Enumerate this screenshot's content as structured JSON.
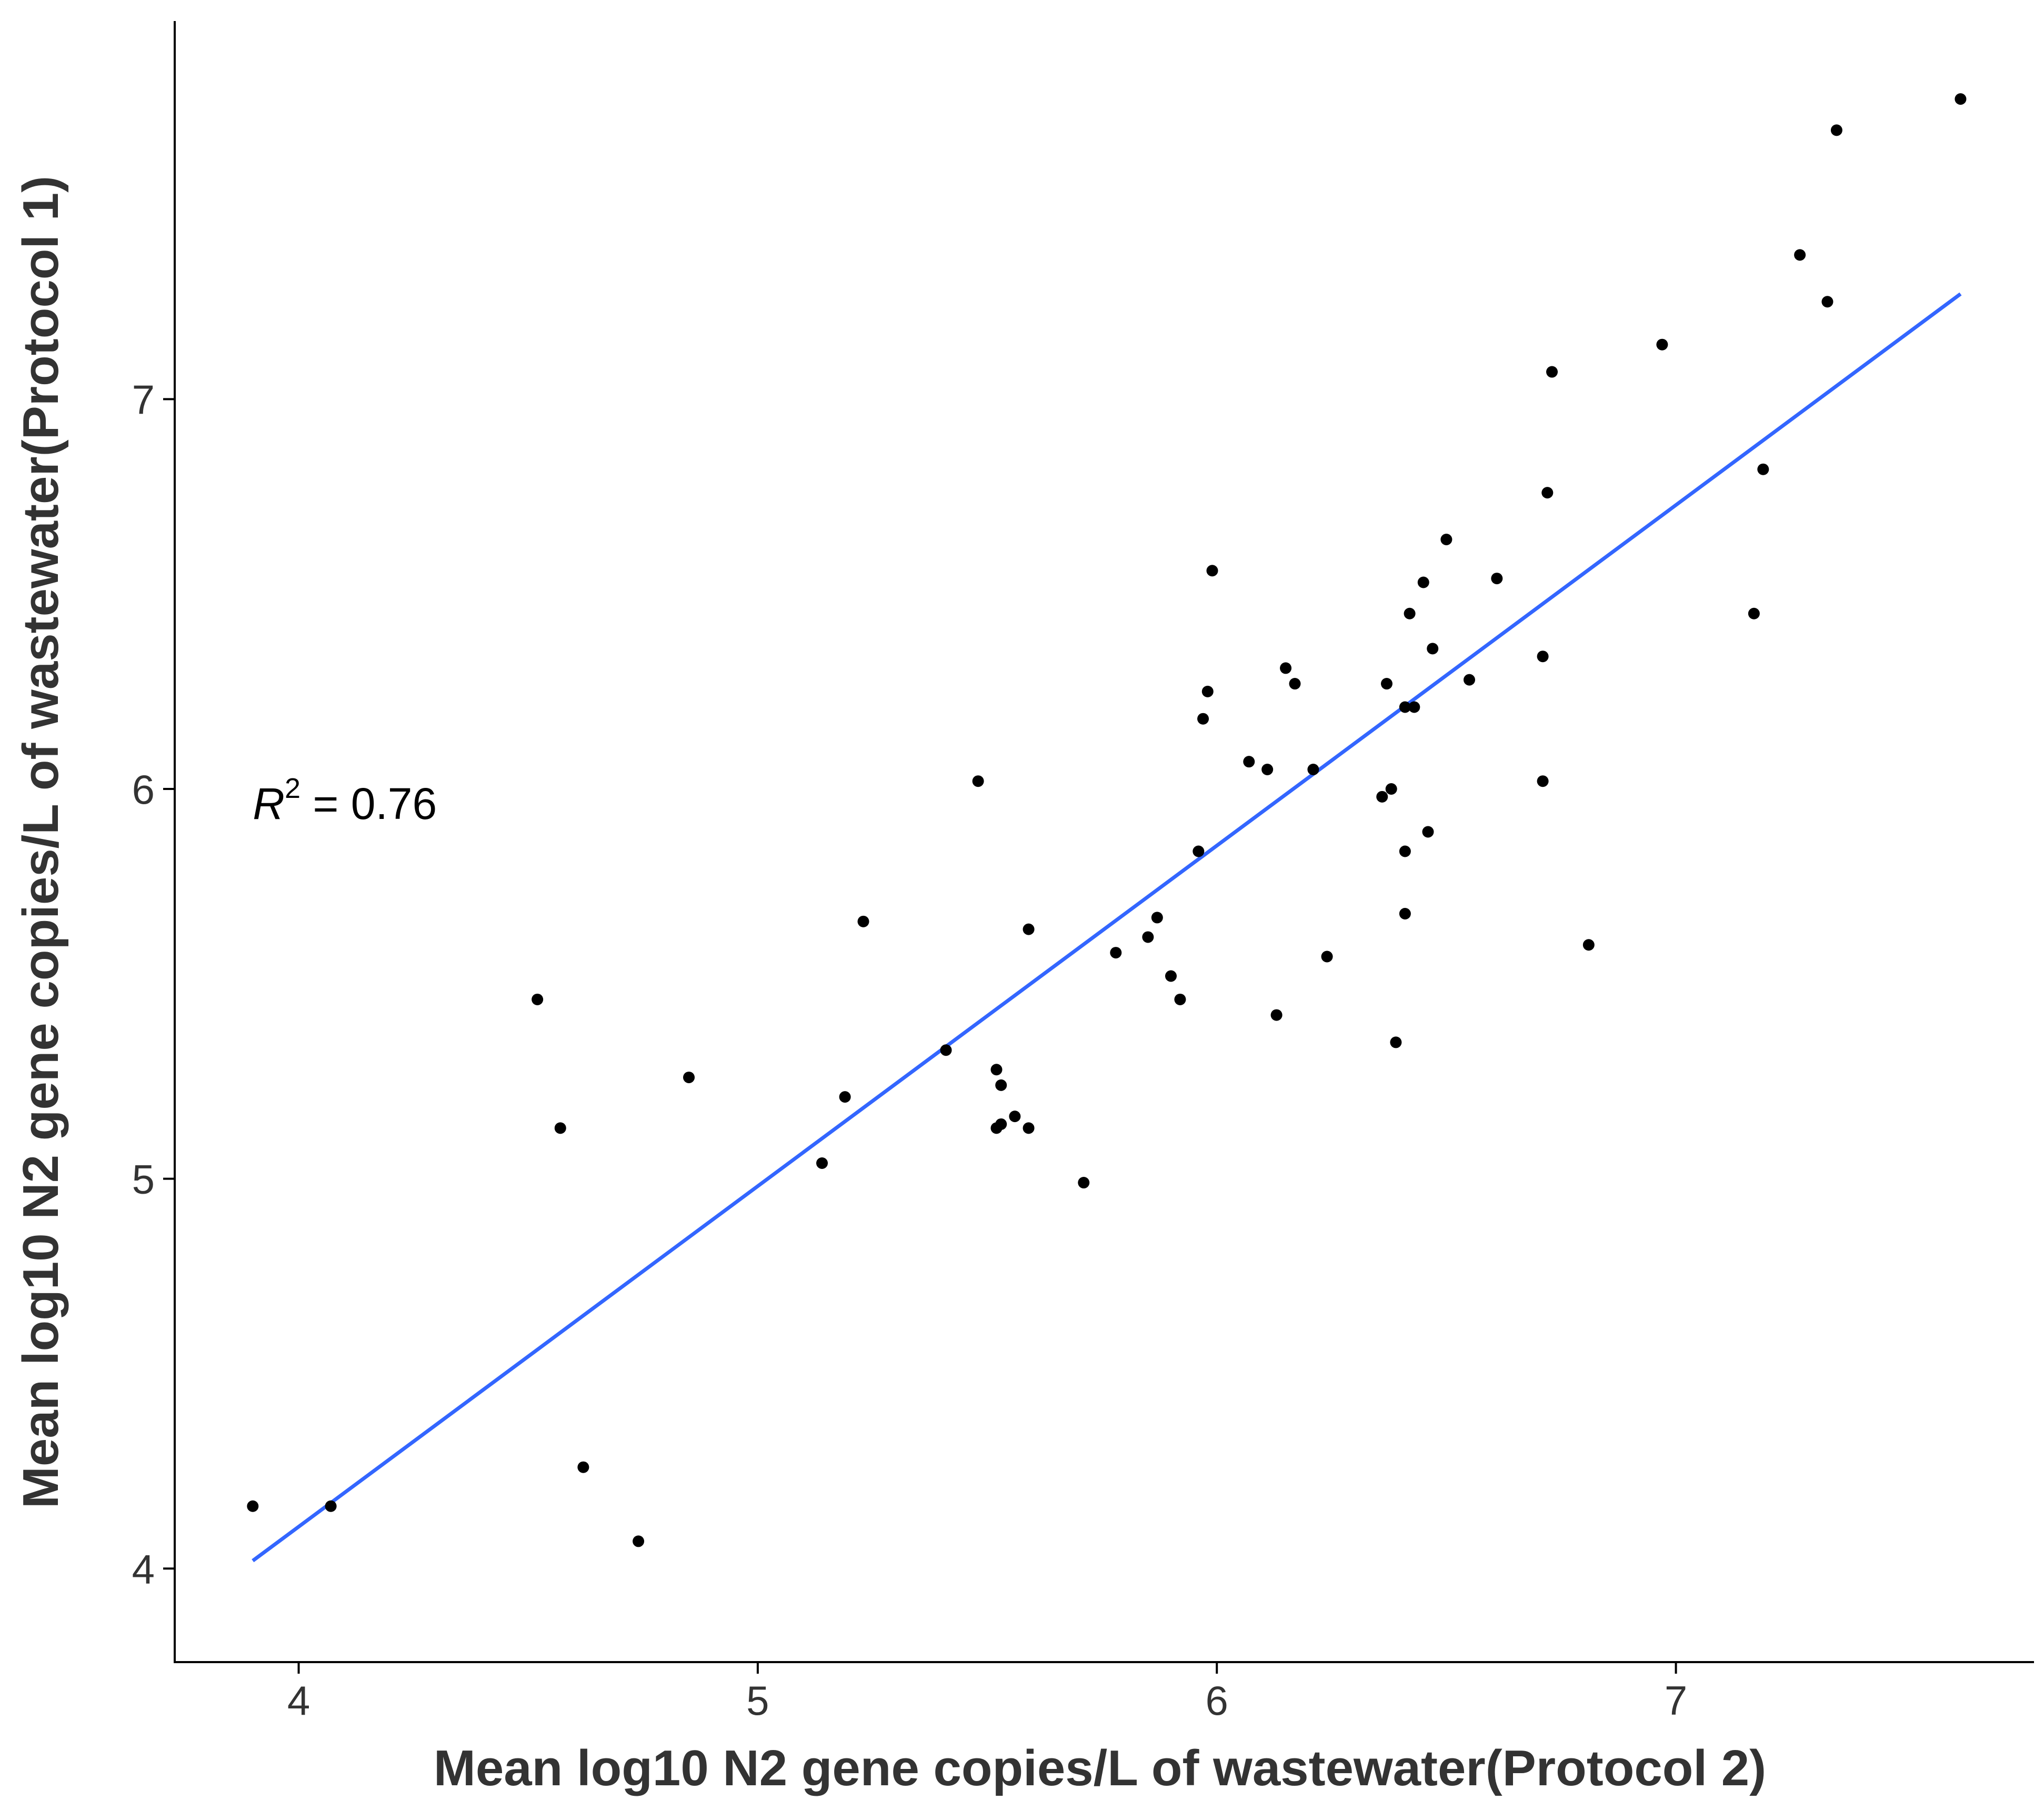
{
  "chart_data": {
    "type": "scatter",
    "xlabel": "Mean log10 N2 gene copies/L of wastewater(Protocol 2)",
    "ylabel": "Mean log10 N2 gene copies/L of wastewater(Protocol 1)",
    "xlim": [
      3.73,
      7.78
    ],
    "ylim": [
      3.76,
      7.97
    ],
    "x_ticks": [
      4,
      5,
      6,
      7
    ],
    "y_ticks": [
      4,
      5,
      6,
      7
    ],
    "x_tick_labels": [
      "4",
      "5",
      "6",
      "7"
    ],
    "y_tick_labels": [
      "4",
      "5",
      "6",
      "7"
    ],
    "grid": false,
    "annotation": {
      "r_symbol": "R",
      "superscript": "2",
      "value_text": " = 0.76",
      "x": 3.9,
      "y": 5.95
    },
    "fit_line": {
      "x": [
        3.9,
        7.62
      ],
      "y": [
        4.02,
        7.27
      ],
      "color": "#3366ff"
    },
    "point_color": "#000000",
    "points": {
      "x": [
        3.9,
        4.07,
        4.52,
        4.57,
        4.62,
        4.74,
        4.85,
        5.14,
        5.19,
        5.23,
        5.41,
        5.48,
        5.52,
        5.52,
        5.53,
        5.53,
        5.56,
        5.59,
        5.59,
        5.71,
        5.78,
        5.85,
        5.87,
        5.9,
        5.92,
        5.96,
        5.97,
        5.98,
        5.99,
        6.07,
        6.11,
        6.13,
        6.15,
        6.17,
        6.21,
        6.24,
        6.36,
        6.37,
        6.38,
        6.39,
        6.41,
        6.41,
        6.41,
        6.42,
        6.43,
        6.45,
        6.46,
        6.47,
        6.5,
        6.55,
        6.61,
        6.71,
        6.71,
        6.72,
        6.73,
        6.81,
        6.97,
        7.17,
        7.19,
        7.27,
        7.33,
        7.35,
        7.62
      ],
      "y": [
        4.16,
        4.16,
        5.46,
        5.13,
        4.26,
        4.07,
        5.26,
        5.04,
        5.21,
        5.66,
        5.33,
        6.02,
        5.13,
        5.28,
        5.14,
        5.24,
        5.16,
        5.64,
        5.13,
        4.99,
        5.58,
        5.62,
        5.67,
        5.52,
        5.46,
        5.84,
        6.18,
        6.25,
        6.56,
        6.07,
        6.05,
        5.42,
        6.31,
        6.27,
        6.05,
        5.57,
        5.98,
        6.27,
        6.0,
        5.35,
        6.21,
        5.84,
        5.68,
        6.45,
        6.21,
        6.53,
        5.89,
        6.36,
        6.64,
        6.28,
        6.54,
        6.34,
        6.02,
        6.76,
        7.07,
        5.6,
        7.14,
        6.45,
        6.82,
        7.37,
        7.25,
        7.69,
        7.77
      ]
    }
  }
}
